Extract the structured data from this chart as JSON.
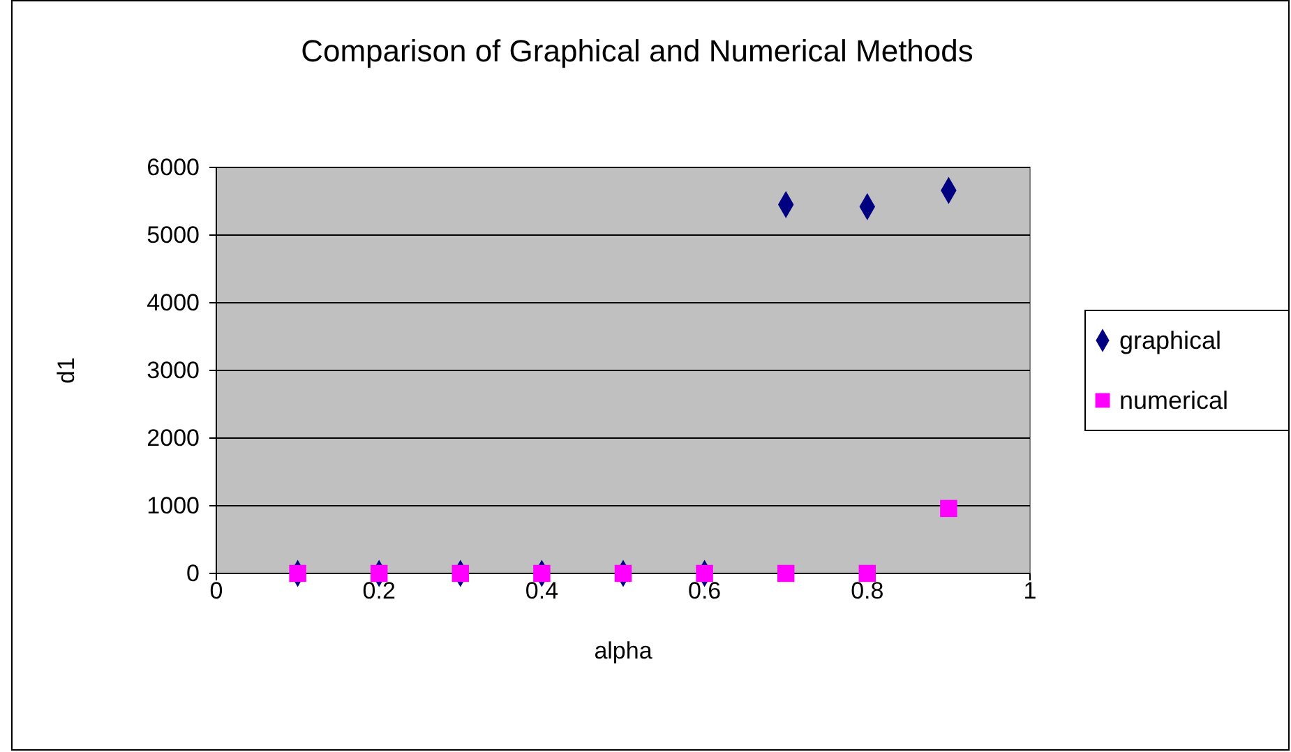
{
  "chart_data": {
    "type": "scatter",
    "title": "Comparison of Graphical and Numerical Methods",
    "xlabel": "alpha",
    "ylabel": "d1",
    "x": [
      0.1,
      0.2,
      0.3,
      0.4,
      0.5,
      0.6,
      0.7,
      0.8,
      0.9
    ],
    "series": [
      {
        "name": "graphical",
        "color": "#000080",
        "marker": "diamond",
        "values": [
          0,
          0,
          0,
          0,
          0,
          0,
          5450,
          5420,
          5660
        ]
      },
      {
        "name": "numerical",
        "color": "#ff00ff",
        "marker": "square",
        "values": [
          0,
          0,
          0,
          0,
          0,
          0,
          0,
          0,
          960
        ]
      }
    ],
    "xlim": [
      0,
      1
    ],
    "xticks": [
      0,
      0.2,
      0.4,
      0.6,
      0.8,
      1
    ],
    "ylim": [
      0,
      6000
    ],
    "yticks": [
      0,
      1000,
      2000,
      3000,
      4000,
      5000,
      6000
    ],
    "grid": "y",
    "legend": "right"
  }
}
